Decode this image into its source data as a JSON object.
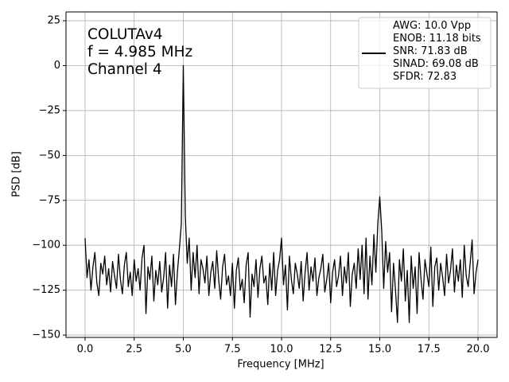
{
  "chart_data": {
    "type": "line",
    "annotation": [
      "COLUTAv4",
      "f = 4.985 MHz",
      "Channel 4"
    ],
    "xlabel": "Frequency [MHz]",
    "ylabel": "PSD [dB]",
    "xlim": [
      -0.97,
      20.97
    ],
    "ylim": [
      -151.3,
      29.9
    ],
    "xticks": [
      {
        "value": 0,
        "label": "0.0"
      },
      2.5,
      {
        "value": 5,
        "label": "5.0"
      },
      7.5,
      {
        "value": 10,
        "label": "10.0"
      },
      12.5,
      {
        "value": 15,
        "label": "15.0"
      },
      17.5,
      {
        "value": 20,
        "label": "20.0"
      }
    ],
    "yticks": [
      {
        "value": -150,
        "label": "−150"
      },
      {
        "value": -125,
        "label": "−125"
      },
      {
        "value": -100,
        "label": "−100"
      },
      {
        "value": -75,
        "label": "−75"
      },
      {
        "value": -50,
        "label": "−50"
      },
      {
        "value": -25,
        "label": "−25"
      },
      0,
      25
    ],
    "grid": true,
    "legend": "upper right",
    "x": [
      0,
      0.1,
      0.2,
      0.3,
      0.4,
      0.5,
      0.6,
      0.7,
      0.8,
      0.9,
      1,
      1.1,
      1.2,
      1.3,
      1.4,
      1.5,
      1.6,
      1.7,
      1.8,
      1.9,
      2,
      2.1,
      2.2,
      2.3,
      2.4,
      2.5,
      2.6,
      2.7,
      2.8,
      2.9,
      3,
      3.1,
      3.2,
      3.3,
      3.4,
      3.5,
      3.6,
      3.7,
      3.8,
      3.9,
      4,
      4.1,
      4.2,
      4.3,
      4.4,
      4.5,
      4.6,
      4.7,
      4.8,
      4.9,
      5,
      5.1,
      5.2,
      5.3,
      5.4,
      5.5,
      5.6,
      5.7,
      5.8,
      5.9,
      6,
      6.1,
      6.2,
      6.3,
      6.4,
      6.5,
      6.6,
      6.7,
      6.8,
      6.9,
      7,
      7.1,
      7.2,
      7.3,
      7.4,
      7.5,
      7.6,
      7.7,
      7.8,
      7.9,
      8,
      8.1,
      8.2,
      8.3,
      8.4,
      8.5,
      8.6,
      8.7,
      8.8,
      8.9,
      9,
      9.1,
      9.2,
      9.3,
      9.4,
      9.5,
      9.6,
      9.7,
      9.8,
      9.9,
      10,
      10.1,
      10.2,
      10.3,
      10.4,
      10.5,
      10.6,
      10.7,
      10.8,
      10.9,
      11,
      11.1,
      11.2,
      11.3,
      11.4,
      11.5,
      11.6,
      11.7,
      11.8,
      11.9,
      12,
      12.1,
      12.2,
      12.3,
      12.4,
      12.5,
      12.6,
      12.7,
      12.8,
      12.9,
      13,
      13.1,
      13.2,
      13.3,
      13.4,
      13.5,
      13.6,
      13.7,
      13.8,
      13.9,
      14,
      14.1,
      14.2,
      14.3,
      14.4,
      14.5,
      14.6,
      14.7,
      14.8,
      14.9,
      15,
      15.1,
      15.2,
      15.3,
      15.4,
      15.5,
      15.6,
      15.7,
      15.8,
      15.9,
      16,
      16.1,
      16.2,
      16.3,
      16.4,
      16.5,
      16.6,
      16.7,
      16.8,
      16.9,
      17,
      17.1,
      17.2,
      17.3,
      17.4,
      17.5,
      17.6,
      17.7,
      17.8,
      17.9,
      18,
      18.1,
      18.2,
      18.3,
      18.4,
      18.5,
      18.6,
      18.7,
      18.8,
      18.9,
      19,
      19.1,
      19.2,
      19.3,
      19.4,
      19.5,
      19.6,
      19.7,
      19.8,
      19.9,
      20
    ],
    "series": [
      {
        "name": "AWG: 10.0 Vpp\nENOB: 11.18 bits\nSNR: 71.83 dB\nSINAD: 69.08 dB\nSFDR: 72.83",
        "color": "#000000",
        "values": [
          -96,
          -118,
          -108,
          -125,
          -112,
          -104,
          -121,
          -128,
          -110,
          -116,
          -106,
          -122,
          -113,
          -126,
          -109,
          -117,
          -124,
          -105,
          -119,
          -127,
          -111,
          -104,
          -123,
          -115,
          -128,
          -108,
          -120,
          -113,
          -125,
          -107,
          -100,
          -138,
          -112,
          -119,
          -106,
          -131,
          -114,
          -122,
          -109,
          -126,
          -118,
          -104,
          -135,
          -111,
          -123,
          -105,
          -133,
          -115,
          -102,
          -88,
          0,
          -83,
          -110,
          -96,
          -125,
          -104,
          -118,
          -100,
          -127,
          -108,
          -113,
          -121,
          -106,
          -128,
          -115,
          -109,
          -124,
          -103,
          -119,
          -130,
          -112,
          -105,
          -122,
          -117,
          -128,
          -110,
          -135,
          -114,
          -107,
          -125,
          -119,
          -132,
          -111,
          -104,
          -140,
          -116,
          -123,
          -108,
          -129,
          -113,
          -106,
          -121,
          -117,
          -133,
          -110,
          -125,
          -104,
          -128,
          -114,
          -108,
          -96,
          -122,
          -111,
          -136,
          -106,
          -119,
          -127,
          -110,
          -116,
          -124,
          -109,
          -131,
          -115,
          -104,
          -125,
          -112,
          -120,
          -107,
          -128,
          -118,
          -113,
          -105,
          -126,
          -119,
          -110,
          -132,
          -115,
          -108,
          -123,
          -117,
          -106,
          -128,
          -112,
          -121,
          -104,
          -134,
          -116,
          -110,
          -124,
          -102,
          -119,
          -100,
          -127,
          -96,
          -130,
          -106,
          -122,
          -94,
          -115,
          -88,
          -73,
          -92,
          -124,
          -98,
          -115,
          -104,
          -137,
          -110,
          -125,
          -143,
          -108,
          -120,
          -102,
          -131,
          -114,
          -143,
          -106,
          -124,
          -112,
          -138,
          -104,
          -119,
          -130,
          -108,
          -116,
          -123,
          -101,
          -134,
          -112,
          -107,
          -125,
          -110,
          -118,
          -128,
          -105,
          -121,
          -114,
          -102,
          -126,
          -111,
          -120,
          -108,
          -129,
          -100,
          -117,
          -123,
          -110,
          -97,
          -127,
          -115,
          -108
        ]
      }
    ]
  }
}
